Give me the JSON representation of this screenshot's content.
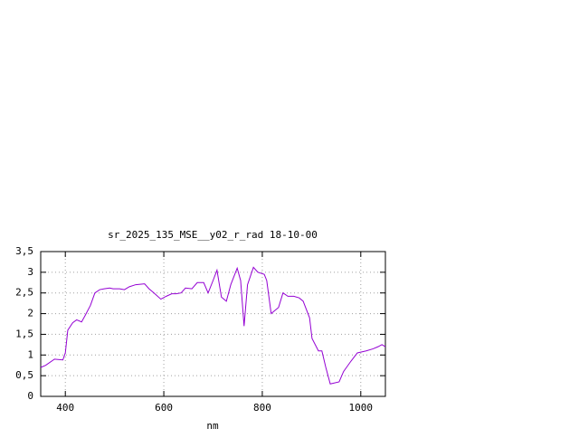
{
  "chart_data": {
    "type": "line",
    "title": "sr_2025_135_MSE__y02_r_rad 18-10-00",
    "x_label": "nm",
    "x": [
      350,
      360,
      378,
      395,
      400,
      405,
      415,
      423,
      433,
      440,
      451,
      460,
      470,
      479,
      490,
      497,
      510,
      520,
      530,
      543,
      561,
      570,
      580,
      594,
      605,
      616,
      625,
      635,
      644,
      657,
      668,
      681,
      690,
      700,
      708,
      717,
      727,
      736,
      749,
      756,
      763,
      770,
      782,
      791,
      804,
      809,
      818,
      833,
      842,
      852,
      864,
      875,
      883,
      896,
      901,
      914,
      921,
      929,
      938,
      956,
      965,
      980,
      993,
      1011,
      1025,
      1035,
      1043,
      1050
    ],
    "series": [
      {
        "name": "sr_2025_135_MSE__y02_r_rad",
        "color": "#9400d3",
        "values": [
          0.7,
          0.75,
          0.9,
          0.88,
          1.05,
          1.6,
          1.78,
          1.85,
          1.8,
          1.95,
          2.2,
          2.5,
          2.58,
          2.6,
          2.62,
          2.6,
          2.6,
          2.58,
          2.65,
          2.7,
          2.72,
          2.6,
          2.5,
          2.35,
          2.42,
          2.48,
          2.48,
          2.5,
          2.62,
          2.6,
          2.75,
          2.75,
          2.5,
          2.8,
          3.05,
          2.4,
          2.3,
          2.7,
          3.1,
          2.8,
          1.7,
          2.7,
          3.12,
          3.0,
          2.95,
          2.8,
          2.0,
          2.15,
          2.5,
          2.42,
          2.42,
          2.38,
          2.3,
          1.9,
          1.4,
          1.1,
          1.1,
          0.7,
          0.3,
          0.35,
          0.6,
          0.85,
          1.05,
          1.1,
          1.15,
          1.2,
          1.25,
          1.2
        ]
      }
    ],
    "xlim": [
      350,
      1050
    ],
    "ylim": [
      0,
      3.5
    ],
    "xticks": [
      400,
      600,
      800,
      1000
    ],
    "yticks": [
      0,
      {
        "value": 0.5,
        "label": "0,5"
      },
      1,
      {
        "value": 1.5,
        "label": "1,5"
      },
      2,
      {
        "value": 2.5,
        "label": "2,5"
      },
      3,
      {
        "value": 3.5,
        "label": "3,5"
      }
    ],
    "grid": true
  }
}
